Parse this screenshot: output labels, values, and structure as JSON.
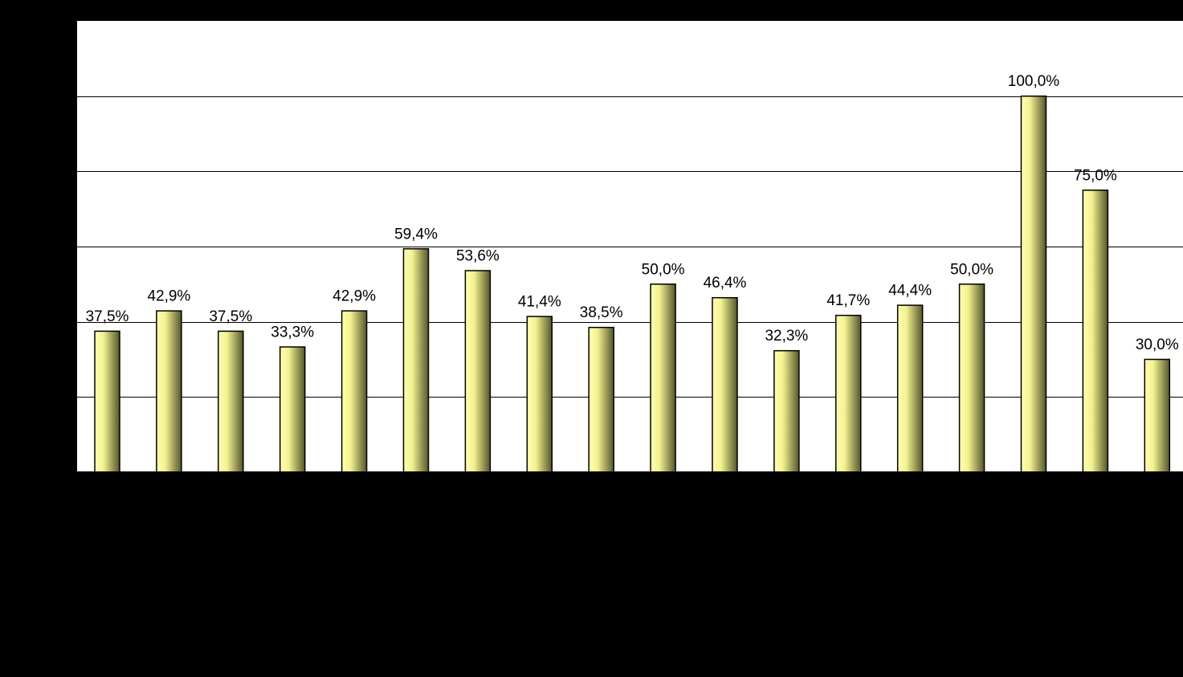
{
  "chart_data": {
    "type": "bar",
    "categories": [
      "",
      "",
      "",
      "",
      "",
      "",
      "",
      "",
      "",
      "",
      "",
      "",
      "",
      "",
      "",
      "",
      "",
      ""
    ],
    "values": [
      37.5,
      42.9,
      37.5,
      33.3,
      42.9,
      59.4,
      53.6,
      41.4,
      38.5,
      50.0,
      46.4,
      32.3,
      41.7,
      44.4,
      50.0,
      100.0,
      75.0,
      30.0
    ],
    "labels": [
      "37,5%",
      "42,9%",
      "37,5%",
      "33,3%",
      "42,9%",
      "59,4%",
      "53,6%",
      "41,4%",
      "38,5%",
      "50,0%",
      "46,4%",
      "32,3%",
      "41,7%",
      "44,4%",
      "50,0%",
      "100,0%",
      "75,0%",
      "30,0%"
    ],
    "ylim": [
      0,
      120
    ],
    "grid": true,
    "colors": {
      "background": "#000000",
      "plot_area": "#ffffff",
      "bar_light": "#ffffb0",
      "bar_dark": "#55552a",
      "bar_outline": "#000000",
      "gridline": "#000000"
    }
  }
}
